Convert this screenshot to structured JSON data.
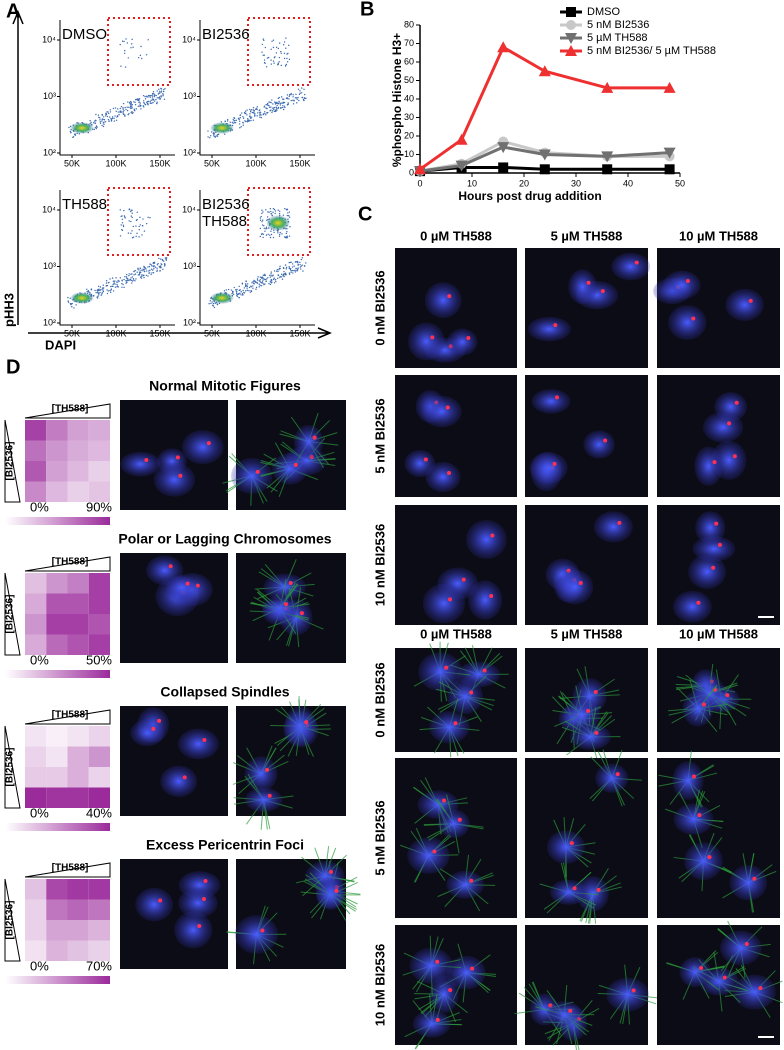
{
  "panel_labels": [
    "A",
    "B",
    "C",
    "D"
  ],
  "flow": {
    "y_label": "pHH3",
    "x_label": "DAPI",
    "xticks": [
      {
        "value": 50000,
        "label": "50K"
      },
      {
        "value": 100000,
        "label": "100K"
      },
      {
        "value": 150000,
        "label": "150K"
      }
    ],
    "yticks": [
      {
        "value": 100,
        "label": "10²"
      },
      {
        "value": 1000,
        "label": "10³"
      },
      {
        "value": 10000,
        "label": "10⁴"
      }
    ],
    "plots": [
      {
        "label": [
          "DMSO"
        ]
      },
      {
        "label": [
          "BI2536"
        ]
      },
      {
        "label": [
          "TH588"
        ]
      },
      {
        "label": [
          "BI2536",
          "TH588"
        ]
      }
    ]
  },
  "chart_data": {
    "type": "line",
    "y_label": "%phospho Histone H3+",
    "x_label": "Hours post drug addition",
    "x": [
      0,
      8,
      16,
      24,
      36,
      48
    ],
    "series": [
      {
        "name": "DMSO",
        "color": "#000000",
        "marker": "square",
        "values": [
          1,
          3,
          3,
          2,
          2,
          2
        ]
      },
      {
        "name": "5 nM BI2536",
        "color": "#c8c8c8",
        "marker": "circle",
        "values": [
          1,
          5,
          17,
          11,
          9,
          9
        ]
      },
      {
        "name": "5 µM TH588",
        "color": "#707070",
        "marker": "down-triangle",
        "values": [
          1,
          4,
          14,
          10,
          9,
          11
        ]
      },
      {
        "name": "5 nM BI2536/ 5 µM TH588",
        "color": "#ee3030",
        "marker": "triangle",
        "values": [
          2,
          18,
          68,
          55,
          46,
          46
        ]
      }
    ],
    "xlim": [
      0,
      50
    ],
    "ylim": [
      0,
      80
    ],
    "xticks": [
      0,
      10,
      20,
      30,
      40,
      50
    ],
    "yticks": [
      0,
      10,
      20,
      30,
      40,
      50,
      60,
      70,
      80
    ],
    "legend": "upper right"
  },
  "micrographs": {
    "set1": {
      "columns": [
        "0 µM TH588",
        "5 µM TH588",
        "10 µM TH588"
      ],
      "rows": [
        "0 nM BI2536",
        "5 nM BI2536",
        "10 nM BI2536"
      ]
    },
    "set2": {
      "columns": [
        "0 µM TH588",
        "5 µM TH588",
        "10 µM TH588"
      ],
      "rows": [
        "0 nM BI2536",
        "5 nM BI2536",
        "10 nM BI2536"
      ]
    }
  },
  "heatmaps": {
    "x_label": "[TH588]",
    "y_label": "[BI2536]",
    "panels": [
      {
        "title": "Normal Mitotic Figures",
        "values": [
          [
            80,
            55,
            40,
            35
          ],
          [
            60,
            45,
            35,
            30
          ],
          [
            70,
            40,
            30,
            20
          ],
          [
            50,
            30,
            20,
            25
          ]
        ],
        "scale": [
          {
            "value": 0,
            "label": "0%"
          },
          {
            "value": 90,
            "label": "90%"
          }
        ]
      },
      {
        "title": "Polar or Lagging Chromosomes",
        "values": [
          [
            15,
            25,
            30,
            45
          ],
          [
            20,
            40,
            40,
            45
          ],
          [
            25,
            45,
            45,
            40
          ],
          [
            20,
            35,
            40,
            45
          ]
        ],
        "scale": [
          {
            "value": 0,
            "label": "0%"
          },
          {
            "value": 50,
            "label": "50%"
          }
        ]
      },
      {
        "title": "Collapsed Spindles",
        "values": [
          [
            5,
            3,
            5,
            8
          ],
          [
            8,
            5,
            15,
            20
          ],
          [
            10,
            10,
            15,
            8
          ],
          [
            40,
            38,
            38,
            40
          ]
        ],
        "scale": [
          {
            "value": 0,
            "label": "0%"
          },
          {
            "value": 40,
            "label": "40%"
          }
        ]
      },
      {
        "title": "Excess Pericentrin Foci",
        "values": [
          [
            20,
            60,
            65,
            65
          ],
          [
            15,
            45,
            50,
            45
          ],
          [
            15,
            30,
            30,
            25
          ],
          [
            10,
            25,
            20,
            15
          ]
        ],
        "scale": [
          {
            "value": 0,
            "label": "0%"
          },
          {
            "value": 70,
            "label": "70%"
          }
        ]
      }
    ]
  }
}
